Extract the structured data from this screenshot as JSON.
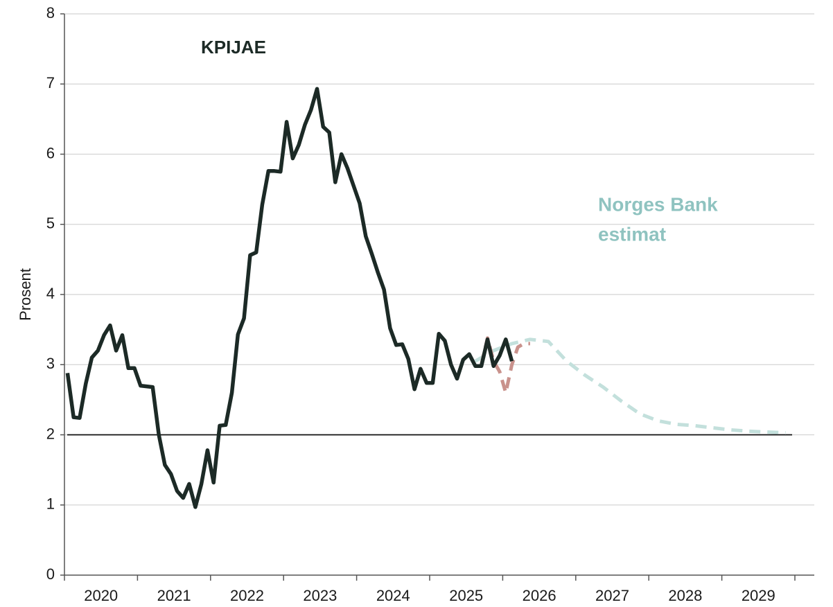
{
  "chart_data": {
    "type": "line",
    "ylabel": "Prosent",
    "annotations": [
      {
        "text": "KPIJAE",
        "color": "#1c2a26"
      },
      {
        "text": "Norges Bank",
        "color": "#8fc3c0"
      },
      {
        "text": "estimat",
        "color": "#8fc3c0"
      }
    ],
    "xlim": [
      2020,
      2030
    ],
    "ylim": [
      0,
      8
    ],
    "yticks": [
      0,
      1,
      2,
      3,
      4,
      5,
      6,
      7,
      8
    ],
    "xticks": [
      {
        "value": 2020.5,
        "label": "2020"
      },
      {
        "value": 2021.5,
        "label": "2021"
      },
      {
        "value": 2022.5,
        "label": "2022"
      },
      {
        "value": 2023.5,
        "label": "2023"
      },
      {
        "value": 2024.5,
        "label": "2024"
      },
      {
        "value": 2025.5,
        "label": "2025"
      },
      {
        "value": 2026.5,
        "label": "2026"
      },
      {
        "value": 2027.5,
        "label": "2027"
      },
      {
        "value": 2028.5,
        "label": "2028"
      },
      {
        "value": 2029.5,
        "label": "2029"
      }
    ],
    "year_bounds": [
      2020,
      2021,
      2022,
      2023,
      2024,
      2025,
      2026,
      2027,
      2028,
      2029,
      2030
    ],
    "grid": true,
    "reference_line": 2,
    "series": [
      {
        "name": "Norges Bank estimat",
        "color": "#c3e0dc",
        "dash": true,
        "x": [
          2025.625,
          2025.875,
          2026.125,
          2026.375,
          2026.625,
          2026.875,
          2027.125,
          2027.375,
          2027.625,
          2027.875,
          2028.125,
          2028.375,
          2028.625,
          2028.875,
          2029.125,
          2029.375,
          2029.625,
          2029.875
        ],
        "values": [
          3.05,
          3.2,
          3.3,
          3.36,
          3.33,
          3.05,
          2.85,
          2.68,
          2.48,
          2.3,
          2.2,
          2.15,
          2.13,
          2.1,
          2.07,
          2.05,
          2.04,
          2.03
        ]
      },
      {
        "color": "#c9928c",
        "dash": true,
        "x": [
          2025.708,
          2025.792,
          2025.875,
          2025.958,
          2026.042,
          2026.125,
          2026.208,
          2026.292,
          2026.375
        ],
        "values": [
          3.0,
          3.38,
          3.05,
          2.9,
          2.6,
          3.0,
          3.25,
          3.3,
          3.3
        ]
      },
      {
        "color": "#1c2a26",
        "dash": false,
        "x": [
          2020.042,
          2020.125,
          2020.208,
          2020.292,
          2020.375,
          2020.458,
          2020.542,
          2020.625,
          2020.708,
          2020.792,
          2020.875,
          2020.958,
          2021.042,
          2021.125,
          2021.208,
          2021.292,
          2021.375,
          2021.458,
          2021.542,
          2021.625,
          2021.708,
          2021.792,
          2021.875,
          2021.958,
          2022.042,
          2022.125,
          2022.208,
          2022.292,
          2022.375,
          2022.458,
          2022.542,
          2022.625,
          2022.708,
          2022.792,
          2022.875,
          2022.958,
          2023.042,
          2023.125,
          2023.208,
          2023.292,
          2023.375,
          2023.458,
          2023.542,
          2023.625,
          2023.708,
          2023.792,
          2023.875,
          2023.958,
          2024.042,
          2024.125,
          2024.208,
          2024.292,
          2024.375,
          2024.458,
          2024.542,
          2024.625,
          2024.708,
          2024.792,
          2024.875,
          2024.958,
          2025.042,
          2025.125,
          2025.208,
          2025.292,
          2025.375,
          2025.458,
          2025.542,
          2025.625,
          2025.708,
          2025.792,
          2025.875,
          2025.958,
          2026.042,
          2026.125
        ],
        "values": [
          2.88,
          2.25,
          2.24,
          2.73,
          3.1,
          3.2,
          3.42,
          3.56,
          3.2,
          3.42,
          2.95,
          2.95,
          2.7,
          2.69,
          2.68,
          2.0,
          1.57,
          1.44,
          1.2,
          1.1,
          1.3,
          0.97,
          1.3,
          1.78,
          1.32,
          2.13,
          2.14,
          2.6,
          3.43,
          3.66,
          4.56,
          4.6,
          5.28,
          5.76,
          5.76,
          5.75,
          6.46,
          5.94,
          6.13,
          6.42,
          6.63,
          6.93,
          6.39,
          6.31,
          5.6,
          6.0,
          5.8,
          5.55,
          5.3,
          4.83,
          4.58,
          4.31,
          4.07,
          3.52,
          3.28,
          3.29,
          3.08,
          2.65,
          2.94,
          2.74,
          2.74,
          3.44,
          3.34,
          3.0,
          2.8,
          3.07,
          3.15,
          2.98,
          2.98,
          3.36,
          2.98,
          3.13,
          3.36,
          3.05
        ]
      }
    ]
  }
}
